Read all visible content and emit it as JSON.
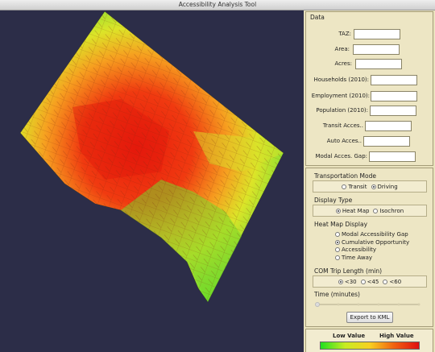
{
  "window": {
    "title": "Accessibility Analysis Tool"
  },
  "data_panel": {
    "title": "Data",
    "fields": [
      "TAZ:",
      "Area:",
      "Acres:",
      "Households (2010):",
      "Employment (2010):",
      "Population (2010):",
      "Transit Acces..",
      "Auto Acces..",
      "Modal Acces. Gap:"
    ]
  },
  "controls": {
    "transportation_mode": {
      "title": "Transportation Mode",
      "options": [
        "Transit",
        "Driving"
      ],
      "selected": "Driving"
    },
    "display_type": {
      "title": "Display Type",
      "options": [
        "Heat Map",
        "Isochron"
      ],
      "selected": "Heat Map"
    },
    "heat_map_display": {
      "title": "Heat Map Display",
      "options": [
        "Modal Accessibility Gap",
        "Cumulative Opportunity",
        "Accessibility",
        "Time Away"
      ],
      "selected": "Cumulative Opportunity"
    },
    "com_trip_length": {
      "title": "COM Trip Length (min)",
      "options": [
        "<30",
        "<45",
        "<60"
      ],
      "selected": "<30"
    },
    "time": {
      "title": "Time (minutes)"
    },
    "export_button": "Export to KML"
  },
  "legend": {
    "low": "Low Value",
    "high": "High Value"
  }
}
